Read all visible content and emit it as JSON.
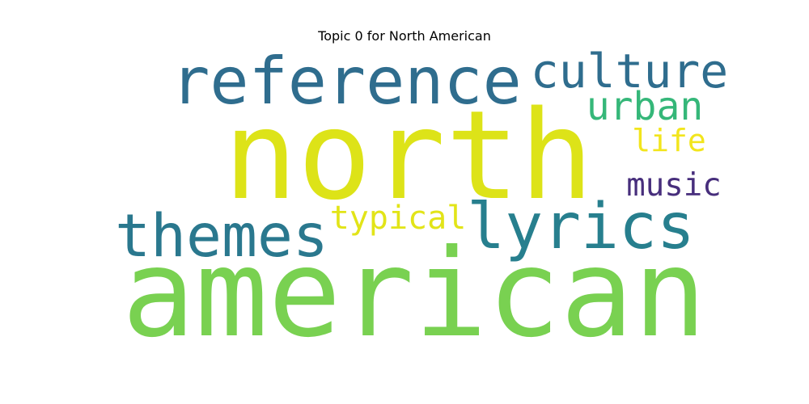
{
  "title": "Topic 0 for North American",
  "words": [
    {
      "text": "american",
      "color": "#79d151"
    },
    {
      "text": "north",
      "color": "#dde318"
    },
    {
      "text": "reference",
      "color": "#2f6d8e"
    },
    {
      "text": "culture",
      "color": "#2f6d8e"
    },
    {
      "text": "urban",
      "color": "#35b779"
    },
    {
      "text": "life",
      "color": "#f2e51d"
    },
    {
      "text": "music",
      "color": "#472e7c"
    },
    {
      "text": "lyrics",
      "color": "#277f8e"
    },
    {
      "text": "themes",
      "color": "#2a788e"
    },
    {
      "text": "typical",
      "color": "#e2e418"
    }
  ]
}
